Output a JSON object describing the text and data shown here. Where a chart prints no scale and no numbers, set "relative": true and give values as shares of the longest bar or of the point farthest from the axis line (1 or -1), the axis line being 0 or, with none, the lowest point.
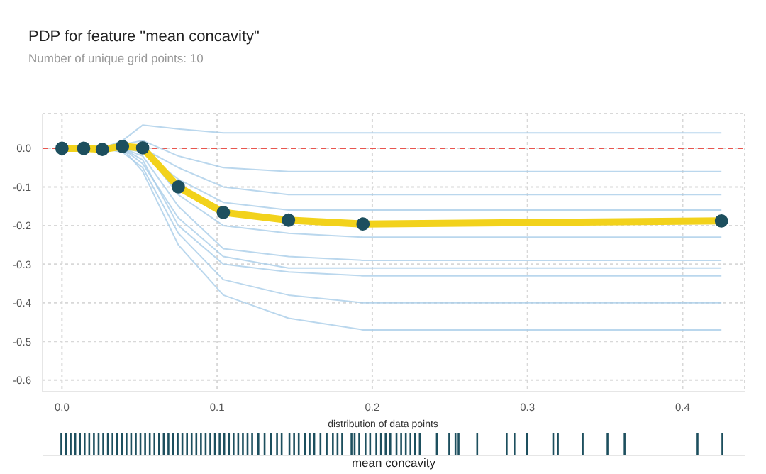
{
  "chart_data": [
    {
      "type": "line",
      "title": "PDP for feature \"mean concavity\"",
      "subtitle": "Number of unique grid points: 10",
      "x": [
        0,
        0.014,
        0.026,
        0.039,
        0.052,
        0.075,
        0.104,
        0.146,
        0.194,
        0.425
      ],
      "series": [
        {
          "color": "#a9cde9",
          "values": [
            0,
            0,
            0,
            0.02,
            0.06,
            0.05,
            0.04,
            0.04,
            0.04,
            0.04
          ]
        },
        {
          "color": "#a9cde9",
          "values": [
            0,
            0,
            0,
            0.01,
            0.02,
            -0.02,
            -0.05,
            -0.06,
            -0.06,
            -0.06
          ]
        },
        {
          "color": "#a9cde9",
          "values": [
            0,
            0,
            0,
            0.01,
            0,
            -0.05,
            -0.1,
            -0.12,
            -0.12,
            -0.12
          ]
        },
        {
          "color": "#a9cde9",
          "values": [
            0,
            0,
            -0.01,
            0,
            -0.01,
            -0.08,
            -0.14,
            -0.16,
            -0.16,
            -0.16
          ]
        },
        {
          "color": "#a9cde9",
          "values": [
            0,
            0,
            0,
            0.01,
            0,
            -0.12,
            -0.2,
            -0.22,
            -0.23,
            -0.23
          ]
        },
        {
          "color": "#a9cde9",
          "values": [
            0,
            0,
            0,
            0,
            -0.02,
            -0.15,
            -0.26,
            -0.28,
            -0.29,
            -0.29
          ]
        },
        {
          "color": "#a9cde9",
          "values": [
            0,
            0,
            -0.01,
            0,
            -0.03,
            -0.2,
            -0.3,
            -0.32,
            -0.33,
            -0.33
          ]
        },
        {
          "color": "#a9cde9",
          "values": [
            0,
            0,
            0,
            -0.01,
            -0.05,
            -0.22,
            -0.34,
            -0.38,
            -0.4,
            -0.4
          ]
        },
        {
          "color": "#a9cde9",
          "values": [
            0,
            0,
            0,
            0,
            -0.06,
            -0.25,
            -0.38,
            -0.44,
            -0.47,
            -0.47
          ]
        },
        {
          "color": "#a9cde9",
          "values": [
            0,
            0,
            -0.01,
            0,
            -0.04,
            -0.18,
            -0.28,
            -0.31,
            -0.31,
            -0.31
          ]
        },
        {
          "color": "#f2d21b",
          "marker": "circle",
          "values": [
            0,
            0,
            -0.003,
            0.005,
            0.001,
            -0.1,
            -0.166,
            -0.186,
            -0.196,
            -0.188
          ]
        }
      ],
      "xlim": [
        -0.0125,
        0.44
      ],
      "xticks": [
        {
          "value": 0,
          "label": "0.0"
        },
        {
          "value": 0.1,
          "label": "0.1"
        },
        {
          "value": 0.2,
          "label": "0.2"
        },
        {
          "value": 0.3,
          "label": "0.3"
        },
        {
          "value": 0.4,
          "label": "0.4"
        }
      ],
      "ylim": [
        -0.63,
        0.09
      ],
      "yticks": [
        {
          "value": 0,
          "label": "0.0"
        },
        {
          "value": -0.1,
          "label": "-0.1"
        },
        {
          "value": -0.2,
          "label": "-0.2"
        },
        {
          "value": -0.3,
          "label": "-0.3"
        },
        {
          "value": -0.4,
          "label": "-0.4"
        },
        {
          "value": -0.5,
          "label": "-0.5"
        },
        {
          "value": -0.6,
          "label": "-0.6"
        }
      ],
      "ref_lines": [
        {
          "axis": "y",
          "value": 0,
          "color": "#e8554e",
          "line_style": "dashed"
        }
      ],
      "grid": true,
      "legend": false,
      "marker": "none",
      "line_style": "solid"
    },
    {
      "type": "bar",
      "title": "distribution of data points",
      "xlabel": "mean concavity",
      "relative": true,
      "color": "#1d4f5e",
      "xlim": [
        -0.0125,
        0.44
      ],
      "x": [
        0,
        0.003,
        0.006,
        0.009,
        0.012,
        0.015,
        0.018,
        0.021,
        0.024,
        0.027,
        0.03,
        0.033,
        0.036,
        0.039,
        0.042,
        0.045,
        0.048,
        0.051,
        0.054,
        0.057,
        0.06,
        0.063,
        0.066,
        0.069,
        0.072,
        0.075,
        0.078,
        0.081,
        0.084,
        0.087,
        0.09,
        0.093,
        0.096,
        0.099,
        0.102,
        0.105,
        0.108,
        0.111,
        0.114,
        0.117,
        0.12,
        0.123,
        0.127,
        0.131,
        0.135,
        0.139,
        0.142,
        0.147,
        0.15,
        0.153,
        0.157,
        0.16,
        0.163,
        0.167,
        0.171,
        0.175,
        0.178,
        0.181,
        0.187,
        0.189,
        0.192,
        0.196,
        0.199,
        0.203,
        0.206,
        0.209,
        0.212,
        0.216,
        0.219,
        0.222,
        0.225,
        0.228,
        0.231,
        0.242,
        0.25,
        0.254,
        0.256,
        0.268,
        0.287,
        0.292,
        0.3,
        0.317,
        0.32,
        0.336,
        0.352,
        0.363,
        0.41,
        0.426
      ],
      "values": [
        1,
        1,
        1,
        1,
        1,
        1,
        1,
        1,
        1,
        1,
        1,
        1,
        1,
        1,
        1,
        1,
        1,
        1,
        1,
        1,
        1,
        1,
        1,
        1,
        1,
        1,
        1,
        1,
        1,
        1,
        1,
        1,
        1,
        1,
        1,
        1,
        1,
        1,
        1,
        1,
        1,
        1,
        1,
        1,
        1,
        1,
        1,
        1,
        1,
        1,
        1,
        1,
        1,
        1,
        1,
        1,
        1,
        1,
        1,
        1,
        1,
        1,
        1,
        1,
        1,
        1,
        1,
        1,
        1,
        1,
        1,
        1,
        1,
        1,
        1,
        1,
        1,
        1,
        1,
        1,
        1,
        1,
        1,
        1,
        1,
        1,
        1,
        1
      ]
    }
  ]
}
